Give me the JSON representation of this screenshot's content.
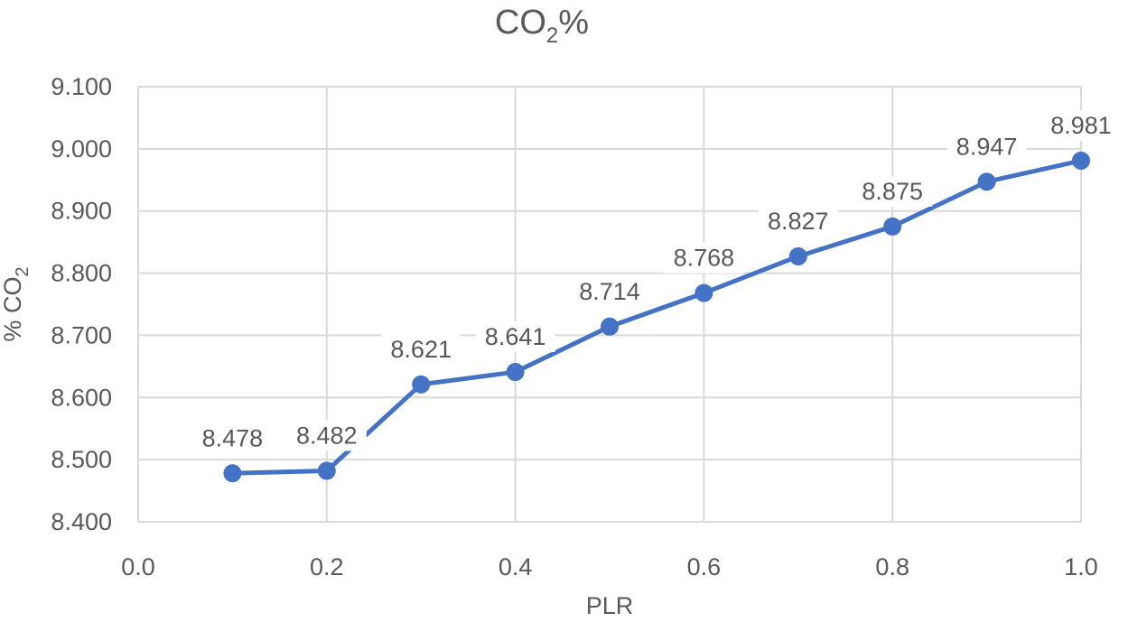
{
  "chart_data": {
    "type": "line",
    "title_main": "CO",
    "title_sub": "2",
    "title_suffix": "%",
    "xlabel": "PLR",
    "ylabel_main": "% CO",
    "ylabel_sub": "2",
    "xlim": [
      0.0,
      1.0
    ],
    "ylim": [
      8.4,
      9.1
    ],
    "x_ticks": [
      "0.0",
      "0.2",
      "0.4",
      "0.6",
      "0.8",
      "1.0"
    ],
    "y_ticks": [
      "8.400",
      "8.500",
      "8.600",
      "8.700",
      "8.800",
      "8.900",
      "9.000",
      "9.100"
    ],
    "grid": true,
    "series": [
      {
        "name": "CO2%",
        "color": "#4472c4",
        "x": [
          0.1,
          0.2,
          0.3,
          0.4,
          0.5,
          0.6,
          0.7,
          0.8,
          0.9,
          1.0
        ],
        "values": [
          8.478,
          8.482,
          8.621,
          8.641,
          8.714,
          8.768,
          8.827,
          8.875,
          8.947,
          8.981
        ],
        "labels": [
          "8.478",
          "8.482",
          "8.621",
          "8.641",
          "8.714",
          "8.768",
          "8.827",
          "8.875",
          "8.947",
          "8.981"
        ]
      }
    ]
  }
}
